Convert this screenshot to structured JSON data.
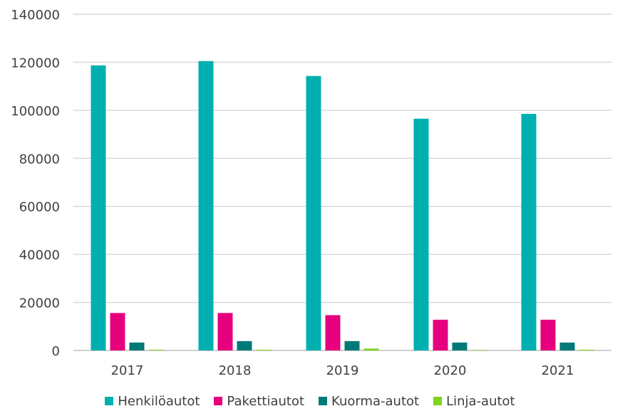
{
  "chart_data": {
    "type": "bar",
    "title": "",
    "xlabel": "",
    "ylabel": "",
    "categories": [
      "2017",
      "2018",
      "2019",
      "2020",
      "2021"
    ],
    "ylim": [
      0,
      140000
    ],
    "yticks": [
      "0",
      "20000",
      "40000",
      "60000",
      "80000",
      "100000",
      "120000",
      "140000"
    ],
    "grid": true,
    "legend_position": "bottom",
    "series": [
      {
        "name": "Henkilöautot",
        "color": "#00B0B0",
        "values": [
          118700,
          120500,
          114300,
          96500,
          98500
        ]
      },
      {
        "name": "Pakettiautot",
        "color": "#E6007E",
        "values": [
          15600,
          15600,
          14700,
          12800,
          12800
        ]
      },
      {
        "name": "Kuorma-autot",
        "color": "#007A78",
        "values": [
          3300,
          3900,
          3900,
          3300,
          3300
        ]
      },
      {
        "name": "Linja-autot",
        "color": "#7ED321",
        "values": [
          300,
          300,
          800,
          200,
          300
        ]
      }
    ]
  }
}
